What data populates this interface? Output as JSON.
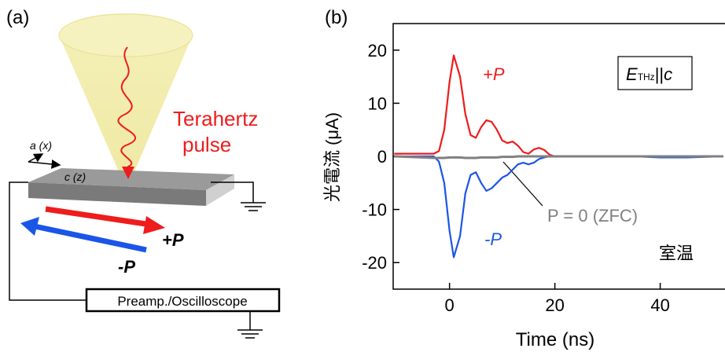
{
  "diagram": {
    "label": "(a)",
    "wave_label": [
      "Terahertz",
      "pulse"
    ],
    "axis_a": "a (x)",
    "axis_c": "c (z)",
    "plus": "+P",
    "minus": "-P",
    "instrument": "Preamp./Oscilloscope"
  },
  "chart_data": {
    "type": "line",
    "label": "(b)",
    "ylabel": "光電流 (μA)",
    "xlabel": "Time (ns)",
    "xlim": [
      -10.7,
      52.3
    ],
    "xticks": [
      0,
      20,
      40
    ],
    "ylim": [
      -25,
      25
    ],
    "yticks": [
      -20,
      -10,
      0,
      10,
      20
    ],
    "box_label": [
      "E",
      "THz",
      "||",
      "c"
    ],
    "condition": "室温",
    "x": [
      -10.5,
      -5,
      -3,
      -2,
      -1,
      0,
      0.8,
      2,
      3,
      4,
      5,
      6,
      7,
      8,
      9,
      10,
      11,
      12,
      13,
      14,
      15,
      16,
      17,
      18,
      19,
      20,
      25,
      30,
      35,
      40,
      45,
      52
    ],
    "series": [
      {
        "name": "+P",
        "color": "#ee1c1c",
        "values": [
          0.5,
          0.5,
          0.5,
          1,
          5,
          14,
          19,
          15,
          8,
          4,
          3.5,
          5.5,
          6.8,
          6.5,
          5,
          3,
          2.5,
          2.8,
          2,
          0.8,
          0.5,
          1.3,
          1.6,
          1.2,
          0.3,
          0,
          0,
          0,
          0,
          0,
          0,
          0
        ]
      },
      {
        "name": "-P",
        "color": "#1a55e8",
        "values": [
          0,
          0,
          0,
          -1,
          -5,
          -14,
          -19,
          -15,
          -7,
          -3.5,
          -3,
          -5,
          -6.5,
          -6,
          -5,
          -4,
          -3.5,
          -2.5,
          -1.5,
          -1.2,
          -1.5,
          -1.2,
          -0.5,
          -0.2,
          0,
          0,
          0,
          0,
          0,
          -0.2,
          -0.2,
          0
        ]
      },
      {
        "name": "P = 0 (ZFC)",
        "color": "#808080",
        "values": [
          0,
          -0.2,
          -0.3,
          -0.3,
          -0.3,
          -0.2,
          -0.2,
          -0.2,
          -0.3,
          -0.3,
          -0.3,
          -0.2,
          -0.2,
          -0.2,
          -0.2,
          -0.1,
          -0.1,
          -0.1,
          0,
          0,
          0,
          0,
          0,
          0,
          0,
          0,
          0,
          0,
          0,
          0,
          0,
          0
        ]
      }
    ]
  }
}
